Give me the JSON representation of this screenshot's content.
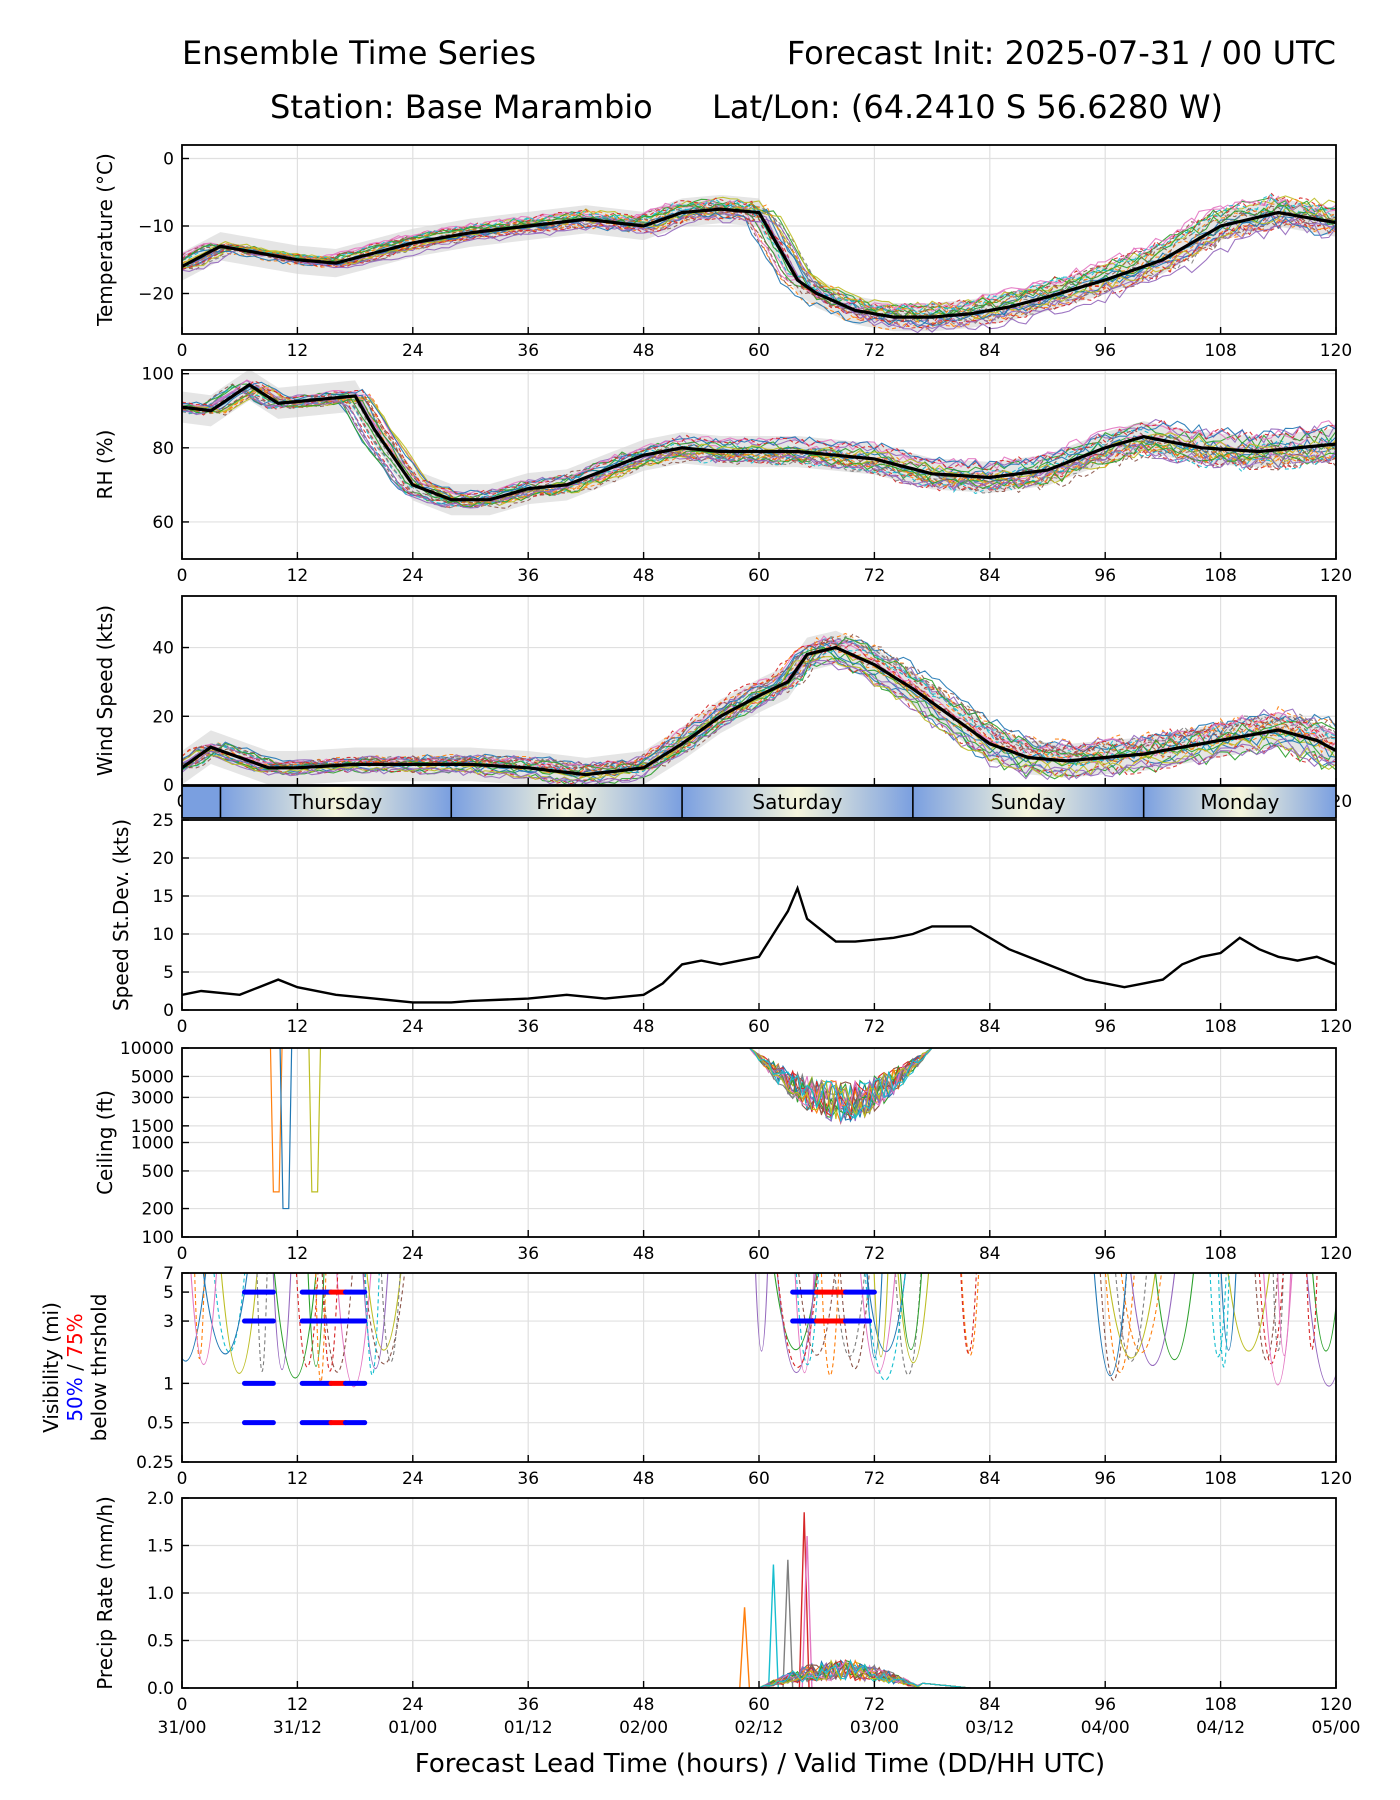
{
  "header": {
    "title_left": "Ensemble Time Series",
    "title_right": "Forecast Init: 2025-07-31 / 00 UTC",
    "station": "Station: Base Marambio",
    "latlon": "Lat/Lon: (64.2410 S 56.6280 W)"
  },
  "xlabel": "Forecast Lead Time (hours) / Valid Time (DD/HH UTC)",
  "colors": {
    "mean": "#000000",
    "band": "#d3d3d3",
    "blue": "#0000ff",
    "red": "#ff0000",
    "members": [
      "#1f77b4",
      "#ff7f0e",
      "#2ca02c",
      "#d62728",
      "#9467bd",
      "#8c564b",
      "#e377c2",
      "#7f7f7f",
      "#bcbd22",
      "#17becf"
    ]
  },
  "x_ticks": [
    "0",
    "12",
    "24",
    "36",
    "48",
    "60",
    "72",
    "84",
    "96",
    "108",
    "120"
  ],
  "valid_times": [
    "31/00",
    "31/12",
    "01/00",
    "01/12",
    "02/00",
    "02/12",
    "03/00",
    "03/12",
    "04/00",
    "04/12",
    "05/00"
  ],
  "day_band": {
    "days": [
      {
        "label": "Thursday",
        "start": 4,
        "end": 28
      },
      {
        "label": "Friday",
        "start": 28,
        "end": 52
      },
      {
        "label": "Saturday",
        "start": 52,
        "end": 76
      },
      {
        "label": "Sunday",
        "start": 76,
        "end": 100
      },
      {
        "label": "Monday",
        "start": 100,
        "end": 120
      }
    ]
  },
  "chart_data": [
    {
      "type": "line",
      "id": "temp",
      "ylabel": "Temperature (°C)",
      "xlim": [
        0,
        120
      ],
      "ylim": [
        -26,
        2
      ],
      "yticks": [
        "0",
        "−10",
        "−20"
      ],
      "ytick_values": [
        0,
        -10,
        -20
      ],
      "mean": {
        "x": [
          0,
          4,
          8,
          12,
          16,
          20,
          24,
          30,
          36,
          42,
          48,
          52,
          56,
          60,
          62,
          64,
          66,
          70,
          74,
          78,
          82,
          86,
          90,
          96,
          102,
          108,
          114,
          120
        ],
        "y": [
          -16,
          -13,
          -14,
          -15,
          -15.5,
          -14,
          -12.5,
          -11,
          -10,
          -9,
          -10,
          -8,
          -7.5,
          -8,
          -13,
          -18,
          -20,
          -22.5,
          -23.5,
          -23.5,
          -23,
          -22,
          -20.5,
          -18,
          -15,
          -10,
          -8,
          -9.5
        ]
      },
      "spread": 6
    },
    {
      "type": "line",
      "id": "rh",
      "ylabel": "RH (%)",
      "xlim": [
        0,
        120
      ],
      "ylim": [
        50,
        101
      ],
      "yticks": [
        "100",
        "80",
        "60"
      ],
      "ytick_values": [
        100,
        80,
        60
      ],
      "mean": {
        "x": [
          0,
          3,
          7,
          10,
          14,
          18,
          20,
          24,
          28,
          32,
          36,
          40,
          44,
          48,
          52,
          56,
          60,
          64,
          68,
          72,
          78,
          84,
          90,
          96,
          100,
          106,
          112,
          120
        ],
        "y": [
          91,
          90,
          97,
          92,
          93,
          94,
          85,
          70,
          66,
          66,
          69,
          70,
          74,
          78,
          80,
          79,
          79,
          79,
          78,
          77,
          73,
          72,
          74,
          80,
          83,
          80,
          79,
          81
        ]
      },
      "spread": 12
    },
    {
      "type": "line",
      "id": "wind",
      "ylabel": "Wind Speed (kts)",
      "xlim": [
        0,
        120
      ],
      "ylim": [
        0,
        55
      ],
      "yticks": [
        "40",
        "20",
        "0"
      ],
      "ytick_values": [
        40,
        20,
        0
      ],
      "mean": {
        "x": [
          0,
          3,
          6,
          9,
          12,
          18,
          24,
          30,
          36,
          42,
          48,
          52,
          56,
          60,
          63,
          65,
          68,
          72,
          76,
          80,
          84,
          88,
          92,
          96,
          100,
          106,
          110,
          114,
          118,
          120
        ],
        "y": [
          5,
          11,
          8,
          5,
          5,
          6,
          6,
          6,
          5,
          3,
          5,
          12,
          20,
          26,
          30,
          38,
          40,
          35,
          28,
          20,
          12,
          8,
          7,
          8,
          9,
          12,
          14,
          16,
          13,
          10
        ]
      },
      "spread": 14
    },
    {
      "type": "line",
      "id": "sdev",
      "ylabel": "Speed St.Dev. (kts)",
      "xlim": [
        0,
        120
      ],
      "ylim": [
        0,
        25
      ],
      "yticks": [
        "25",
        "20",
        "15",
        "10",
        "5",
        "0"
      ],
      "ytick_values": [
        25,
        20,
        15,
        10,
        5,
        0
      ],
      "series": [
        {
          "x": [
            0,
            2,
            6,
            8,
            10,
            12,
            16,
            20,
            24,
            28,
            30,
            36,
            40,
            44,
            48,
            50,
            52,
            54,
            56,
            58,
            60,
            61,
            62,
            63,
            64,
            65,
            66,
            67,
            68,
            70,
            74,
            76,
            78,
            82,
            86,
            90,
            94,
            98,
            100,
            102,
            104,
            106,
            108,
            110,
            112,
            114,
            116,
            118,
            120
          ],
          "y": [
            2,
            2.5,
            2,
            3,
            4,
            3,
            2,
            1.5,
            1,
            1,
            1.2,
            1.5,
            2,
            1.5,
            2,
            3.5,
            6,
            6.5,
            6,
            6.5,
            7,
            9,
            11,
            13,
            16,
            12,
            11,
            10,
            9,
            9,
            9.5,
            10,
            11,
            11,
            8,
            6,
            4,
            3,
            3.5,
            4,
            6,
            7,
            7.5,
            9.5,
            8,
            7,
            6.5,
            7,
            6
          ]
        }
      ]
    },
    {
      "type": "line",
      "id": "ceiling",
      "ylabel": "Ceiling (ft)",
      "xlim": [
        0,
        120
      ],
      "ylim": [
        100,
        10000
      ],
      "yscale": "log",
      "yticks": [
        "10000",
        "5000",
        "3000",
        "1500",
        "1000",
        "500",
        "200",
        "100"
      ],
      "ytick_values": [
        10000,
        5000,
        3000,
        1500,
        1000,
        500,
        200,
        100
      ]
    },
    {
      "type": "line",
      "id": "vis",
      "ylabel": "Visibility (mi)",
      "xlim": [
        0,
        120
      ],
      "ylim": [
        0.25,
        7
      ],
      "yscale": "log",
      "ylabel_50": "50%",
      "ylabel_sep": " / ",
      "ylabel_75": "75%",
      "ylabel_2": "below thrshold",
      "yticks": [
        "7",
        "5",
        "3",
        "1",
        "0.5",
        "0.25"
      ],
      "ytick_values": [
        7,
        5,
        3,
        1,
        0.5,
        0.25
      ],
      "thresholds": [
        {
          "y": 5,
          "segs": [
            [
              6.5,
              9.5,
              "blue"
            ],
            [
              12.5,
              15.5,
              "blue"
            ],
            [
              15.5,
              17,
              "red"
            ],
            [
              17,
              19,
              "blue"
            ],
            [
              63.5,
              66,
              "blue"
            ],
            [
              66,
              69,
              "red"
            ],
            [
              69,
              72,
              "blue"
            ]
          ]
        },
        {
          "y": 3,
          "segs": [
            [
              6.5,
              9.5,
              "blue"
            ],
            [
              12.5,
              19,
              "blue"
            ],
            [
              63.5,
              66,
              "blue"
            ],
            [
              66,
              69,
              "red"
            ],
            [
              69,
              71.5,
              "blue"
            ]
          ]
        },
        {
          "y": 1,
          "segs": [
            [
              6.5,
              9.5,
              "blue"
            ],
            [
              12.5,
              15.5,
              "blue"
            ],
            [
              15.5,
              17,
              "red"
            ],
            [
              17,
              19,
              "blue"
            ]
          ]
        },
        {
          "y": 0.5,
          "segs": [
            [
              6.5,
              9.5,
              "blue"
            ],
            [
              12.5,
              15.5,
              "blue"
            ],
            [
              15.5,
              17,
              "red"
            ],
            [
              17,
              19,
              "blue"
            ]
          ]
        }
      ]
    },
    {
      "type": "line",
      "id": "precip",
      "ylabel": "Precip Rate (mm/h)",
      "xlim": [
        0,
        120
      ],
      "ylim": [
        0,
        2
      ],
      "yticks": [
        "2.0",
        "1.5",
        "1.0",
        "0.5",
        "0.0"
      ],
      "ytick_values": [
        2,
        1.5,
        1,
        0.5,
        0
      ]
    }
  ]
}
